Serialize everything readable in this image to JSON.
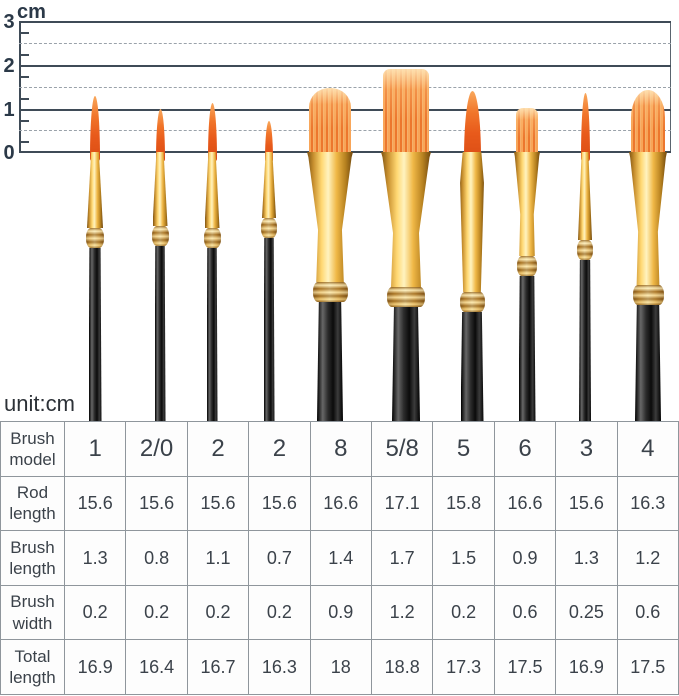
{
  "ruler": {
    "unit_label": "cm",
    "tick_labels": [
      "3",
      "2",
      "1",
      "0"
    ],
    "range_cm": {
      "min": 0,
      "max": 3
    },
    "line_color": "#3f4b57",
    "label_color": "#2b3948"
  },
  "unit_note": "unit:cm",
  "brushes": [
    {
      "model": "1",
      "tip_icon": "round-pointed-bristle-icon"
    },
    {
      "model": "2/0",
      "tip_icon": "round-pointed-bristle-icon"
    },
    {
      "model": "2",
      "tip_icon": "round-pointed-bristle-icon"
    },
    {
      "model": "2",
      "tip_icon": "round-pointed-bristle-icon"
    },
    {
      "model": "8",
      "tip_icon": "dome-wash-bristle-icon"
    },
    {
      "model": "5/8",
      "tip_icon": "flat-wash-bristle-icon"
    },
    {
      "model": "5",
      "tip_icon": "round-pointed-bristle-icon"
    },
    {
      "model": "6",
      "tip_icon": "flat-shader-bristle-icon"
    },
    {
      "model": "3",
      "tip_icon": "round-pointed-bristle-icon"
    },
    {
      "model": "4",
      "tip_icon": "filbert-bristle-icon"
    }
  ],
  "colors": {
    "bristle_orange": "#ec772e",
    "ferrule_gold": "#f0b847",
    "handle_black": "#111111",
    "table_border": "#8f969c",
    "table_text": "#3b424a"
  },
  "table": {
    "rows": [
      {
        "label": "Brush model",
        "values": [
          "1",
          "2/0",
          "2",
          "2",
          "8",
          "5/8",
          "5",
          "6",
          "3",
          "4"
        ]
      },
      {
        "label": "Rod length",
        "values": [
          "15.6",
          "15.6",
          "15.6",
          "15.6",
          "16.6",
          "17.1",
          "15.8",
          "16.6",
          "15.6",
          "16.3"
        ]
      },
      {
        "label": "Brush length",
        "values": [
          "1.3",
          "0.8",
          "1.1",
          "0.7",
          "1.4",
          "1.7",
          "1.5",
          "0.9",
          "1.3",
          "1.2"
        ]
      },
      {
        "label": "Brush width",
        "values": [
          "0.2",
          "0.2",
          "0.2",
          "0.2",
          "0.9",
          "1.2",
          "0.2",
          "0.6",
          "0.25",
          "0.6"
        ]
      },
      {
        "label": "Total length",
        "values": [
          "16.9",
          "16.4",
          "16.7",
          "16.3",
          "18",
          "18.8",
          "17.3",
          "17.5",
          "16.9",
          "17.5"
        ]
      }
    ]
  }
}
